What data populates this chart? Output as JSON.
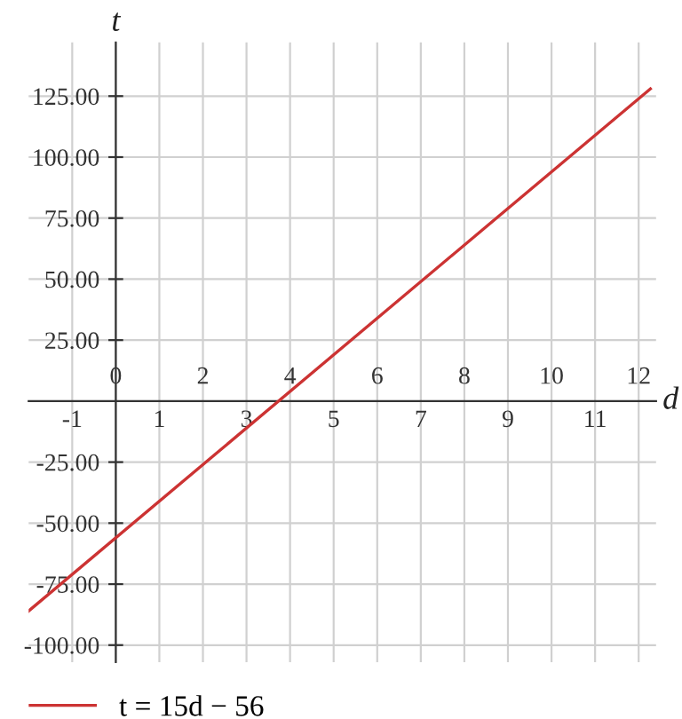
{
  "chart_data": {
    "type": "line",
    "xlabel": "d",
    "ylabel": "t",
    "x": [
      -2,
      12.27
    ],
    "series": [
      {
        "name": "t = 15d − 56",
        "color": "#cc3333",
        "values": [
          -86,
          128
        ]
      }
    ],
    "xlim": [
      -2,
      12.4
    ],
    "ylim": [
      -107,
      147
    ],
    "xticks": [
      -1,
      1,
      3,
      5,
      7,
      9,
      11
    ],
    "x2lim": [
      -2,
      12.4
    ],
    "x2ticks": [
      0,
      2,
      4,
      6,
      8,
      10,
      12
    ],
    "yticks": [
      {
        "value": -100,
        "label": "-100.00"
      },
      {
        "value": -75,
        "label": "-75.00"
      },
      {
        "value": -50,
        "label": "-50.00"
      },
      {
        "value": -25,
        "label": "-25.00"
      },
      {
        "value": 25,
        "label": "25.00"
      },
      {
        "value": 50,
        "label": "50.00"
      },
      {
        "value": 75,
        "label": "75.00"
      },
      {
        "value": 100,
        "label": "100.00"
      },
      {
        "value": 125,
        "label": "125.00"
      }
    ],
    "grid": true,
    "legend": "bottom left",
    "marker": "none",
    "line_style": "solid"
  }
}
